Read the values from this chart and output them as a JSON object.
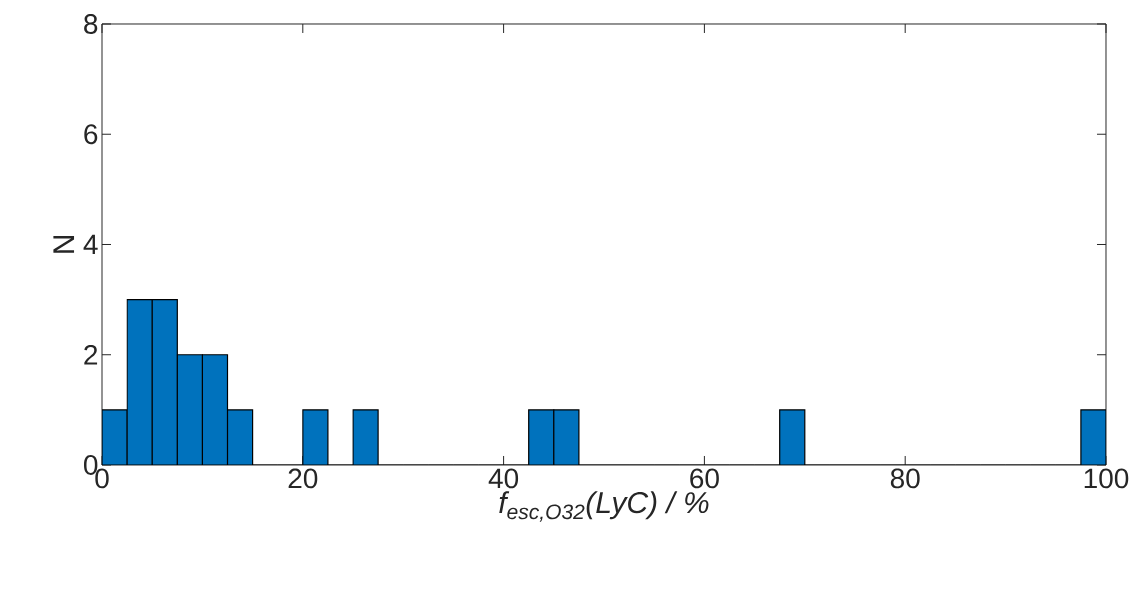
{
  "chart_data": {
    "type": "histogram",
    "xlabel": "f$_{esc,O32}$(LyC) / %",
    "ylabel": "N",
    "bins": [
      0,
      2.5,
      5,
      7.5,
      10,
      12.5,
      15,
      17.5,
      20,
      22.5,
      25,
      27.5,
      30,
      32.5,
      35,
      37.5,
      40,
      42.5,
      45,
      47.5,
      50,
      52.5,
      55,
      57.5,
      60,
      62.5,
      65,
      67.5,
      70,
      72.5,
      75,
      77.5,
      80,
      82.5,
      85,
      87.5,
      90,
      92.5,
      95,
      97.5,
      100
    ],
    "values": [
      1,
      3,
      3,
      2,
      2,
      1,
      0,
      0,
      1,
      0,
      1,
      0,
      0,
      0,
      0,
      0,
      0,
      1,
      1,
      0,
      0,
      0,
      0,
      0,
      0,
      0,
      0,
      1,
      0,
      0,
      0,
      0,
      0,
      0,
      0,
      0,
      0,
      0,
      0,
      1
    ],
    "color": "#0072bd",
    "xlim": [
      0,
      100
    ],
    "ylim": [
      0,
      8
    ],
    "xticks": [
      0,
      20,
      40,
      60,
      80,
      100
    ],
    "yticks": [
      0,
      2,
      4,
      6,
      8
    ],
    "grid": false
  }
}
